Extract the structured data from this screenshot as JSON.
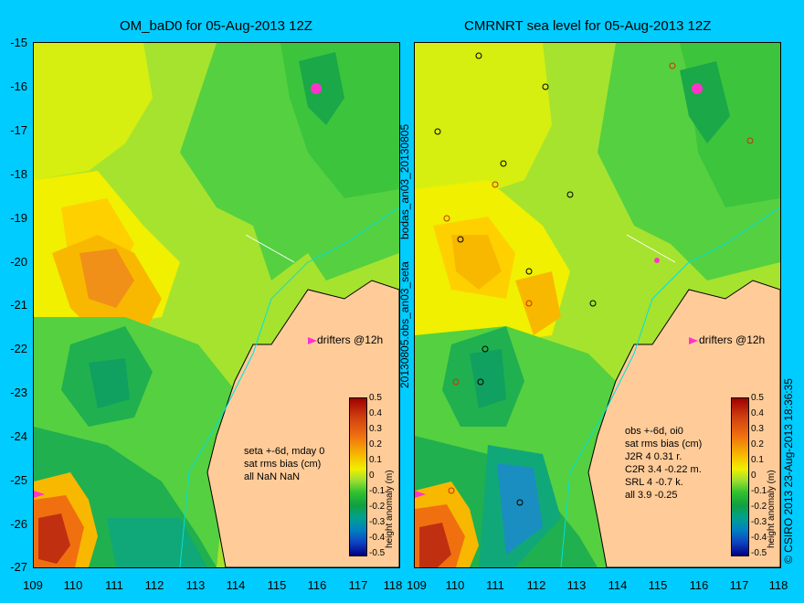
{
  "titles": {
    "left": "OM_baD0 for 05-Aug-2013 12Z",
    "right": "CMRNRT sea level  for 05-Aug-2013 12Z"
  },
  "axes": {
    "y_ticks": [
      "-15",
      "-16",
      "-17",
      "-18",
      "-19",
      "-20",
      "-21",
      "-22",
      "-23",
      "-24",
      "-25",
      "-26",
      "-27"
    ],
    "x_ticks_left": [
      "109",
      "110",
      "111",
      "112",
      "113",
      "114",
      "115",
      "116",
      "117",
      "118"
    ],
    "x_ticks_right": [
      "109",
      "110",
      "111",
      "112",
      "113",
      "114",
      "115",
      "116",
      "117",
      "118"
    ]
  },
  "side_labels": {
    "top": "bodas_an03_20130805",
    "middle": "20130805.obs_an03_seta",
    "bottom": "© CSIRO 2013   23-Aug-2013 18:36:35"
  },
  "left_panel": {
    "drifters": "drifters @12h",
    "stats_lines": [
      "seta +-6d, mday 0",
      "sat rms bias (cm)",
      "all NaN NaN"
    ],
    "colorbar_label": "height anomaly (m)",
    "colorbar_ticks": [
      "0.5",
      "0.4",
      "0.3",
      "0.2",
      "0.1",
      "0",
      "-0.1",
      "-0.2",
      "-0.3",
      "-0.4",
      "-0.5"
    ]
  },
  "right_panel": {
    "drifters": "drifters @12h",
    "stats_lines": [
      "obs +-6d, oi0",
      "sat rms bias (cm)",
      "J2R   4  0.31  r.",
      "C2R   3.4 -0.22  m.",
      "SRL    4  -0.7  k.",
      "all   3.9 -0.25"
    ],
    "colorbar_label": "height anomaly (m)",
    "colorbar_ticks": [
      "0.5",
      "0.4",
      "0.3",
      "0.2",
      "0.1",
      "0",
      "-0.1",
      "-0.2",
      "-0.3",
      "-0.4",
      "-0.5"
    ]
  },
  "colors": {
    "background": "#00ccff",
    "land": "#ffcc99",
    "drifter": "#ff33cc"
  }
}
